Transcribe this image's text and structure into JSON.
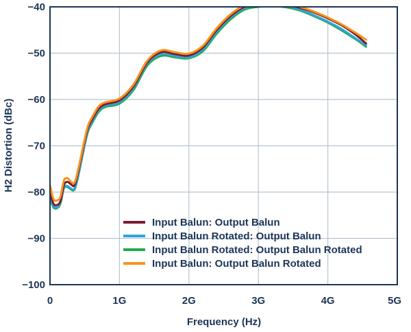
{
  "chart_data": {
    "type": "line",
    "title": "",
    "xlabel": "Frequency (Hz)",
    "ylabel": "H2 Distortion (dBc)",
    "xlim": [
      0,
      5
    ],
    "ylim": [
      -100,
      -40
    ],
    "xticks": [
      0,
      1,
      2,
      3,
      4,
      5
    ],
    "xtick_labels": [
      "0",
      "1G",
      "2G",
      "3G",
      "4G",
      "5G"
    ],
    "yticks": [
      -100,
      -90,
      -80,
      -70,
      -60,
      -50,
      -40
    ],
    "ytick_labels": [
      "−100",
      "−90",
      "−80",
      "−70",
      "−60",
      "−50",
      "−40"
    ],
    "grid": true,
    "legend_position": "bottom-center",
    "series": [
      {
        "name": "Input Balun: Output Balun",
        "color": "#7b1c2e",
        "x": [
          0.0,
          0.05,
          0.1,
          0.15,
          0.2,
          0.25,
          0.3,
          0.35,
          0.4,
          0.5,
          0.55,
          0.6,
          0.7,
          0.8,
          1.0,
          1.2,
          1.4,
          1.6,
          1.8,
          2.0,
          2.2,
          2.4,
          2.6,
          2.8,
          3.0,
          3.2,
          3.4,
          3.6,
          3.8,
          4.0,
          4.2,
          4.4,
          4.55
        ],
        "y": [
          -80.0,
          -82.5,
          -82.8,
          -82.0,
          -78.5,
          -77.8,
          -78.3,
          -78.6,
          -76.0,
          -69.0,
          -66.0,
          -64.5,
          -62.0,
          -61.0,
          -60.2,
          -57.2,
          -52.0,
          -49.8,
          -50.2,
          -50.5,
          -48.8,
          -45.0,
          -42.0,
          -40.0,
          -39.5,
          -39.3,
          -39.6,
          -40.2,
          -41.2,
          -42.5,
          -44.0,
          -46.0,
          -47.9
        ]
      },
      {
        "name": "Input Balun Rotated: Output Balun",
        "color": "#2fa4dc",
        "x": [
          0.0,
          0.05,
          0.1,
          0.15,
          0.2,
          0.25,
          0.3,
          0.35,
          0.4,
          0.5,
          0.55,
          0.6,
          0.7,
          0.8,
          1.0,
          1.2,
          1.4,
          1.6,
          1.8,
          2.0,
          2.2,
          2.4,
          2.6,
          2.8,
          3.0,
          3.2,
          3.4,
          3.6,
          3.8,
          4.0,
          4.2,
          4.4,
          4.55
        ],
        "y": [
          -81.0,
          -83.0,
          -83.3,
          -82.3,
          -79.0,
          -78.7,
          -79.2,
          -79.3,
          -76.8,
          -69.5,
          -66.5,
          -65.0,
          -62.3,
          -61.3,
          -60.6,
          -57.6,
          -52.3,
          -50.2,
          -50.6,
          -50.9,
          -49.2,
          -45.4,
          -42.3,
          -40.3,
          -39.7,
          -39.5,
          -39.8,
          -40.6,
          -41.8,
          -43.2,
          -44.8,
          -46.8,
          -48.3
        ]
      },
      {
        "name": "Input Balun Rotated: Output Balun Rotated",
        "color": "#1fac4a",
        "x": [
          0.0,
          0.05,
          0.1,
          0.15,
          0.2,
          0.25,
          0.3,
          0.35,
          0.4,
          0.5,
          0.55,
          0.6,
          0.7,
          0.8,
          1.0,
          1.2,
          1.4,
          1.6,
          1.8,
          2.0,
          2.2,
          2.4,
          2.6,
          2.8,
          3.0,
          3.2,
          3.4,
          3.6,
          3.8,
          4.0,
          4.2,
          4.4,
          4.55
        ],
        "y": [
          -81.5,
          -83.3,
          -83.5,
          -82.5,
          -79.2,
          -78.9,
          -79.4,
          -79.5,
          -77.0,
          -69.8,
          -66.8,
          -65.3,
          -62.7,
          -61.6,
          -60.9,
          -58.0,
          -52.7,
          -50.6,
          -50.9,
          -51.1,
          -49.6,
          -45.8,
          -42.7,
          -40.6,
          -40.0,
          -39.8,
          -40.1,
          -40.8,
          -42.0,
          -43.4,
          -45.1,
          -47.0,
          -48.6
        ]
      },
      {
        "name": "Input Balun: Output Balun Rotated",
        "color": "#f7931e",
        "x": [
          0.0,
          0.05,
          0.1,
          0.15,
          0.2,
          0.25,
          0.3,
          0.35,
          0.4,
          0.5,
          0.55,
          0.6,
          0.7,
          0.8,
          1.0,
          1.2,
          1.4,
          1.6,
          1.8,
          2.0,
          2.2,
          2.4,
          2.6,
          2.8,
          3.0,
          3.2,
          3.4,
          3.6,
          3.8,
          4.0,
          4.2,
          4.4,
          4.55
        ],
        "y": [
          -78.5,
          -81.5,
          -81.8,
          -81.0,
          -77.5,
          -77.0,
          -77.7,
          -78.0,
          -75.5,
          -68.5,
          -65.5,
          -64.0,
          -61.5,
          -60.6,
          -59.8,
          -56.8,
          -51.6,
          -49.4,
          -49.8,
          -50.1,
          -48.4,
          -44.6,
          -41.6,
          -39.7,
          -39.2,
          -39.0,
          -39.4,
          -40.0,
          -41.0,
          -42.3,
          -43.8,
          -45.6,
          -47.1
        ]
      }
    ]
  }
}
